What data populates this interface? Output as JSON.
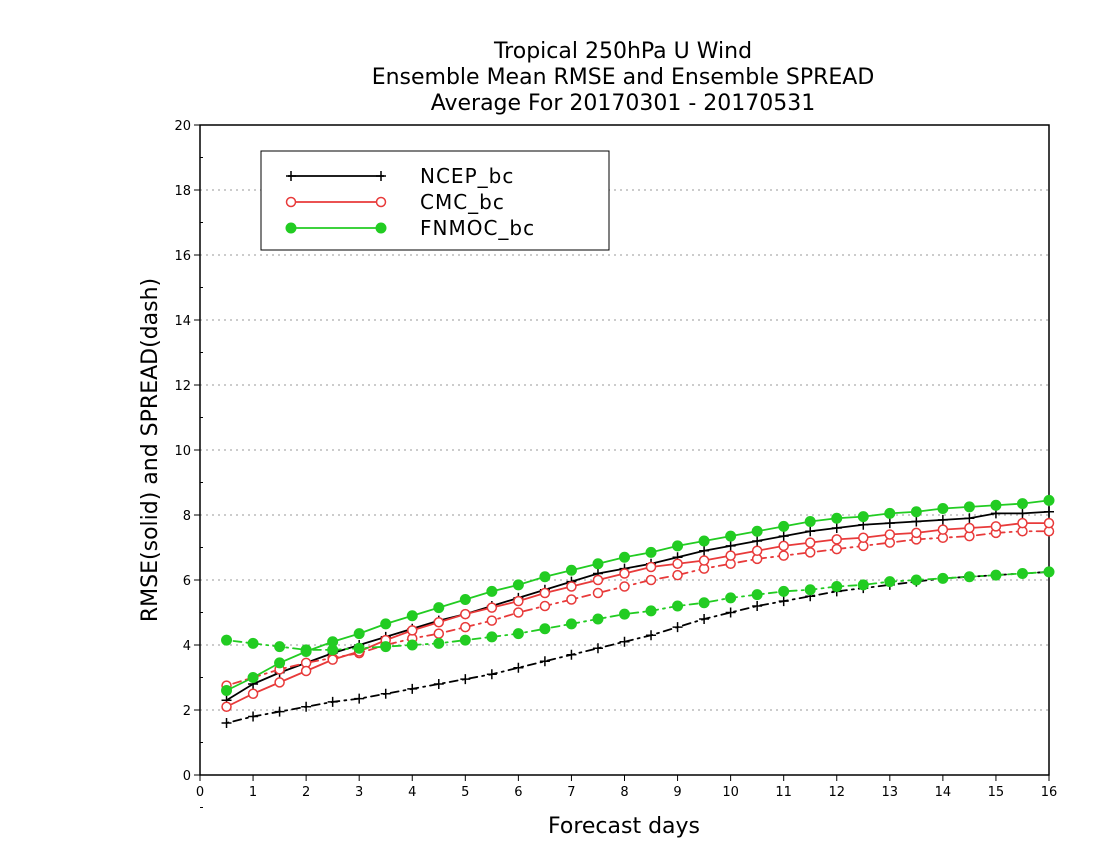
{
  "chart_data": {
    "type": "line",
    "title": [
      "Tropical 250hPa U Wind",
      "Ensemble Mean RMSE and Ensemble SPREAD",
      "Average For 20170301 - 20170531"
    ],
    "xlabel": "Forecast days",
    "ylabel": "RMSE(solid) and SPREAD(dash)",
    "xlim": [
      0,
      16
    ],
    "ylim": [
      0,
      20
    ],
    "xticks": [
      0,
      1,
      2,
      3,
      4,
      5,
      6,
      7,
      8,
      9,
      10,
      11,
      12,
      13,
      14,
      15,
      16
    ],
    "yticks": [
      0,
      2,
      4,
      6,
      8,
      10,
      12,
      14,
      16,
      18,
      20
    ],
    "grid": "horizontal dotted",
    "legend_position": "top-left",
    "x": [
      0.5,
      1,
      1.5,
      2,
      2.5,
      3,
      3.5,
      4,
      4.5,
      5,
      5.5,
      6,
      6.5,
      7,
      7.5,
      8,
      8.5,
      9,
      9.5,
      10,
      10.5,
      11,
      11.5,
      12,
      12.5,
      13,
      13.5,
      14,
      14.5,
      15,
      15.5,
      16
    ],
    "series": [
      {
        "name": "NCEP_bc",
        "color": "#000000",
        "marker": "plus",
        "rmse": [
          2.3,
          2.8,
          3.15,
          3.45,
          3.75,
          4.0,
          4.25,
          4.5,
          4.75,
          4.95,
          5.2,
          5.45,
          5.7,
          5.95,
          6.2,
          6.35,
          6.5,
          6.7,
          6.9,
          7.05,
          7.2,
          7.35,
          7.5,
          7.6,
          7.7,
          7.75,
          7.8,
          7.85,
          7.9,
          8.05,
          8.05,
          8.1
        ],
        "spread": [
          1.6,
          1.8,
          1.95,
          2.1,
          2.25,
          2.35,
          2.5,
          2.65,
          2.8,
          2.95,
          3.1,
          3.3,
          3.5,
          3.7,
          3.9,
          4.1,
          4.3,
          4.55,
          4.8,
          5.0,
          5.2,
          5.35,
          5.5,
          5.65,
          5.75,
          5.85,
          5.95,
          6.05,
          6.1,
          6.15,
          6.2,
          6.25
        ]
      },
      {
        "name": "CMC_bc",
        "color": "#e83a3a",
        "marker": "open-circle",
        "rmse": [
          2.1,
          2.5,
          2.85,
          3.2,
          3.55,
          3.8,
          4.15,
          4.45,
          4.7,
          4.95,
          5.15,
          5.35,
          5.6,
          5.8,
          6.0,
          6.2,
          6.4,
          6.5,
          6.6,
          6.75,
          6.9,
          7.05,
          7.15,
          7.25,
          7.3,
          7.4,
          7.45,
          7.55,
          7.6,
          7.65,
          7.75,
          7.75
        ],
        "spread": [
          2.75,
          3.0,
          3.25,
          3.45,
          3.6,
          3.75,
          4.0,
          4.2,
          4.35,
          4.55,
          4.75,
          5.0,
          5.2,
          5.4,
          5.6,
          5.8,
          6.0,
          6.15,
          6.35,
          6.5,
          6.65,
          6.75,
          6.85,
          6.95,
          7.05,
          7.15,
          7.25,
          7.3,
          7.35,
          7.45,
          7.5,
          7.5
        ]
      },
      {
        "name": "FNMOC_bc",
        "color": "#22cc22",
        "marker": "filled-circle",
        "rmse": [
          2.6,
          3.0,
          3.45,
          3.8,
          4.1,
          4.35,
          4.65,
          4.9,
          5.15,
          5.4,
          5.65,
          5.85,
          6.1,
          6.3,
          6.5,
          6.7,
          6.85,
          7.05,
          7.2,
          7.35,
          7.5,
          7.65,
          7.8,
          7.9,
          7.95,
          8.05,
          8.1,
          8.2,
          8.25,
          8.3,
          8.35,
          8.45
        ],
        "spread": [
          4.15,
          4.05,
          3.95,
          3.85,
          3.85,
          3.9,
          3.95,
          4.0,
          4.05,
          4.15,
          4.25,
          4.35,
          4.5,
          4.65,
          4.8,
          4.95,
          5.05,
          5.2,
          5.3,
          5.45,
          5.55,
          5.65,
          5.7,
          5.8,
          5.85,
          5.95,
          6.0,
          6.05,
          6.1,
          6.15,
          6.2,
          6.25
        ]
      }
    ]
  }
}
